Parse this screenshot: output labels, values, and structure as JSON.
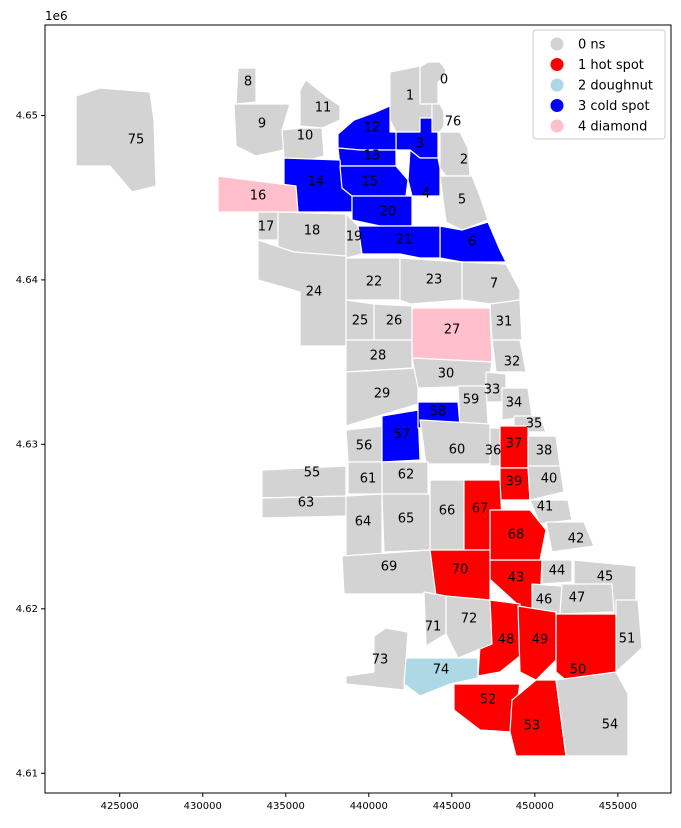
{
  "figure": {
    "axis_exponent": "1e6"
  },
  "axes": {
    "x_ticks": [
      "425000",
      "430000",
      "435000",
      "440000",
      "445000",
      "450000",
      "455000"
    ],
    "y_ticks": [
      "4.61",
      "4.62",
      "4.63",
      "4.64",
      "4.65"
    ],
    "x_range": [
      420500,
      458200
    ],
    "y_range": [
      4.6088,
      4.6555
    ]
  },
  "legend": {
    "placement": "top-right",
    "items": [
      {
        "label": "0 ns",
        "color": "#d3d3d3"
      },
      {
        "label": "1 hot spot",
        "color": "#ff0000"
      },
      {
        "label": "2 doughnut",
        "color": "#add8e6"
      },
      {
        "label": "3 cold spot",
        "color": "#0000ff"
      },
      {
        "label": "4 diamond",
        "color": "#ffc0cb"
      }
    ]
  },
  "regions": [
    {
      "id": "0",
      "class": "0 ns"
    },
    {
      "id": "1",
      "class": "0 ns"
    },
    {
      "id": "2",
      "class": "0 ns"
    },
    {
      "id": "3",
      "class": "3 cold spot"
    },
    {
      "id": "4",
      "class": "3 cold spot"
    },
    {
      "id": "5",
      "class": "0 ns"
    },
    {
      "id": "6",
      "class": "3 cold spot"
    },
    {
      "id": "7",
      "class": "0 ns"
    },
    {
      "id": "8",
      "class": "0 ns"
    },
    {
      "id": "9",
      "class": "0 ns"
    },
    {
      "id": "10",
      "class": "0 ns"
    },
    {
      "id": "11",
      "class": "0 ns"
    },
    {
      "id": "12",
      "class": "3 cold spot"
    },
    {
      "id": "13",
      "class": "3 cold spot"
    },
    {
      "id": "14",
      "class": "3 cold spot"
    },
    {
      "id": "15",
      "class": "3 cold spot"
    },
    {
      "id": "16",
      "class": "4 diamond"
    },
    {
      "id": "17",
      "class": "0 ns"
    },
    {
      "id": "18",
      "class": "0 ns"
    },
    {
      "id": "19",
      "class": "0 ns"
    },
    {
      "id": "20",
      "class": "3 cold spot"
    },
    {
      "id": "21",
      "class": "3 cold spot"
    },
    {
      "id": "22",
      "class": "0 ns"
    },
    {
      "id": "23",
      "class": "0 ns"
    },
    {
      "id": "24",
      "class": "0 ns"
    },
    {
      "id": "25",
      "class": "0 ns"
    },
    {
      "id": "26",
      "class": "0 ns"
    },
    {
      "id": "27",
      "class": "4 diamond"
    },
    {
      "id": "28",
      "class": "0 ns"
    },
    {
      "id": "29",
      "class": "0 ns"
    },
    {
      "id": "30",
      "class": "0 ns"
    },
    {
      "id": "31",
      "class": "0 ns"
    },
    {
      "id": "32",
      "class": "0 ns"
    },
    {
      "id": "33",
      "class": "0 ns"
    },
    {
      "id": "34",
      "class": "0 ns"
    },
    {
      "id": "35",
      "class": "0 ns"
    },
    {
      "id": "36",
      "class": "0 ns"
    },
    {
      "id": "37",
      "class": "1 hot spot"
    },
    {
      "id": "38",
      "class": "0 ns"
    },
    {
      "id": "39",
      "class": "1 hot spot"
    },
    {
      "id": "40",
      "class": "0 ns"
    },
    {
      "id": "41",
      "class": "0 ns"
    },
    {
      "id": "42",
      "class": "0 ns"
    },
    {
      "id": "43",
      "class": "1 hot spot"
    },
    {
      "id": "44",
      "class": "0 ns"
    },
    {
      "id": "45",
      "class": "0 ns"
    },
    {
      "id": "46",
      "class": "0 ns"
    },
    {
      "id": "47",
      "class": "0 ns"
    },
    {
      "id": "48",
      "class": "1 hot spot"
    },
    {
      "id": "49",
      "class": "1 hot spot"
    },
    {
      "id": "50",
      "class": "1 hot spot"
    },
    {
      "id": "51",
      "class": "0 ns"
    },
    {
      "id": "52",
      "class": "1 hot spot"
    },
    {
      "id": "53",
      "class": "1 hot spot"
    },
    {
      "id": "54",
      "class": "0 ns"
    },
    {
      "id": "55",
      "class": "0 ns"
    },
    {
      "id": "56",
      "class": "0 ns"
    },
    {
      "id": "57",
      "class": "3 cold spot"
    },
    {
      "id": "58",
      "class": "3 cold spot"
    },
    {
      "id": "59",
      "class": "0 ns"
    },
    {
      "id": "60",
      "class": "0 ns"
    },
    {
      "id": "61",
      "class": "0 ns"
    },
    {
      "id": "62",
      "class": "0 ns"
    },
    {
      "id": "63",
      "class": "0 ns"
    },
    {
      "id": "64",
      "class": "0 ns"
    },
    {
      "id": "65",
      "class": "0 ns"
    },
    {
      "id": "66",
      "class": "0 ns"
    },
    {
      "id": "67",
      "class": "1 hot spot"
    },
    {
      "id": "68",
      "class": "1 hot spot"
    },
    {
      "id": "69",
      "class": "0 ns"
    },
    {
      "id": "70",
      "class": "1 hot spot"
    },
    {
      "id": "71",
      "class": "0 ns"
    },
    {
      "id": "72",
      "class": "0 ns"
    },
    {
      "id": "73",
      "class": "0 ns"
    },
    {
      "id": "74",
      "class": "2 doughnut"
    },
    {
      "id": "75",
      "class": "0 ns"
    },
    {
      "id": "76",
      "class": "0 ns"
    }
  ]
}
